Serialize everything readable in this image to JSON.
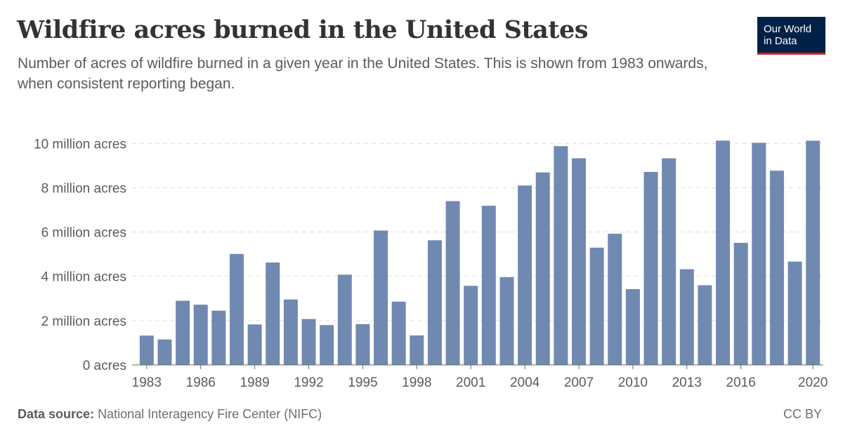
{
  "header": {
    "title": "Wildfire acres burned in the United States",
    "subtitle": "Number of acres of wildfire burned in a given year in the United States. This is shown from 1983 onwards, when consistent reporting began.",
    "logo_line1": "Our World",
    "logo_line2": "in Data"
  },
  "footer": {
    "source_label": "Data source:",
    "source_text": "National Interagency Fire Center (NIFC)",
    "license": "CC BY"
  },
  "colors": {
    "bar": "#7089b0",
    "grid": "#dddddd",
    "axis": "#666666",
    "text": "#5b5b5b",
    "logo_bg": "#002147",
    "logo_accent": "#ce261e"
  },
  "chart_data": {
    "type": "bar",
    "title": "Wildfire acres burned in the United States",
    "x": [
      1983,
      1984,
      1985,
      1986,
      1987,
      1988,
      1989,
      1990,
      1991,
      1992,
      1993,
      1994,
      1995,
      1996,
      1997,
      1998,
      1999,
      2000,
      2001,
      2002,
      2003,
      2004,
      2005,
      2006,
      2007,
      2008,
      2009,
      2010,
      2011,
      2012,
      2013,
      2014,
      2015,
      2016,
      2017,
      2018,
      2019,
      2020
    ],
    "values": [
      1323666,
      1148409,
      2896147,
      2719162,
      2447296,
      5009290,
      1827310,
      4621621,
      2953578,
      2069929,
      1797574,
      4073579,
      1840546,
      6065998,
      2856959,
      1329704,
      5626093,
      7393493,
      3570911,
      7184712,
      3960842,
      8097880,
      8689389,
      9873745,
      9328045,
      5292468,
      5921786,
      3422724,
      8711367,
      9326238,
      4319546,
      3595613,
      10125149,
      5509995,
      10026086,
      8767492,
      4664364,
      10122336
    ],
    "x_ticks": [
      1983,
      1986,
      1989,
      1992,
      1995,
      1998,
      2001,
      2004,
      2007,
      2010,
      2013,
      2016,
      2020
    ],
    "y_ticks": [
      0,
      2000000,
      4000000,
      6000000,
      8000000,
      10000000
    ],
    "y_tick_labels": [
      "0 acres",
      "2 million acres",
      "4 million acres",
      "6 million acres",
      "8 million acres",
      "10 million acres"
    ],
    "ylim": [
      0,
      10200000
    ],
    "grid": "horizontal-dashed",
    "unit": "acres"
  }
}
